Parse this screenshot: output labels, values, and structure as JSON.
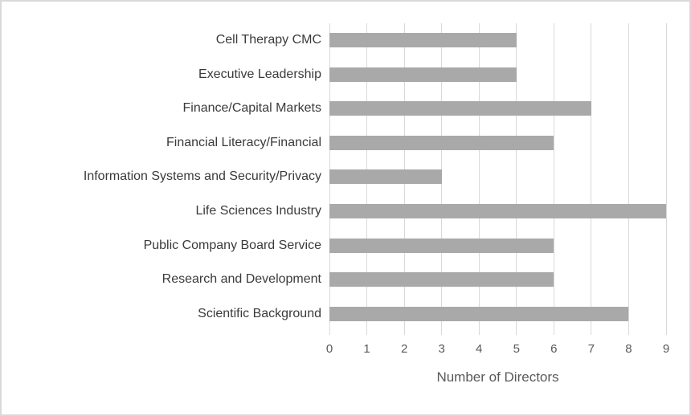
{
  "chart_data": {
    "type": "bar",
    "orientation": "horizontal",
    "title": "",
    "xlabel": "Number of Directors",
    "ylabel": "",
    "categories": [
      "Cell Therapy CMC",
      "Executive Leadership",
      "Finance/Capital Markets",
      "Financial Literacy/Financial",
      "Information Systems and Security/Privacy",
      "Life Sciences Industry",
      "Public Company Board Service",
      "Research and Development",
      "Scientific Background"
    ],
    "values": [
      5,
      5,
      7,
      6,
      3,
      9,
      6,
      6,
      8
    ],
    "xlim": [
      0,
      9
    ],
    "x_ticks": [
      "0",
      "1",
      "2",
      "3",
      "4",
      "5",
      "6",
      "7",
      "8",
      "9"
    ],
    "grid": "vertical-on",
    "legend": "none",
    "colors": {
      "bar": "#a9a9a9",
      "gridline": "#d9d9d9",
      "axis_line": "#d9d9d9",
      "category_label": "#3a3a3a",
      "tick_label": "#595959",
      "axis_title": "#595959",
      "background": "#ffffff",
      "frame_border": "#d9d9dc"
    }
  }
}
